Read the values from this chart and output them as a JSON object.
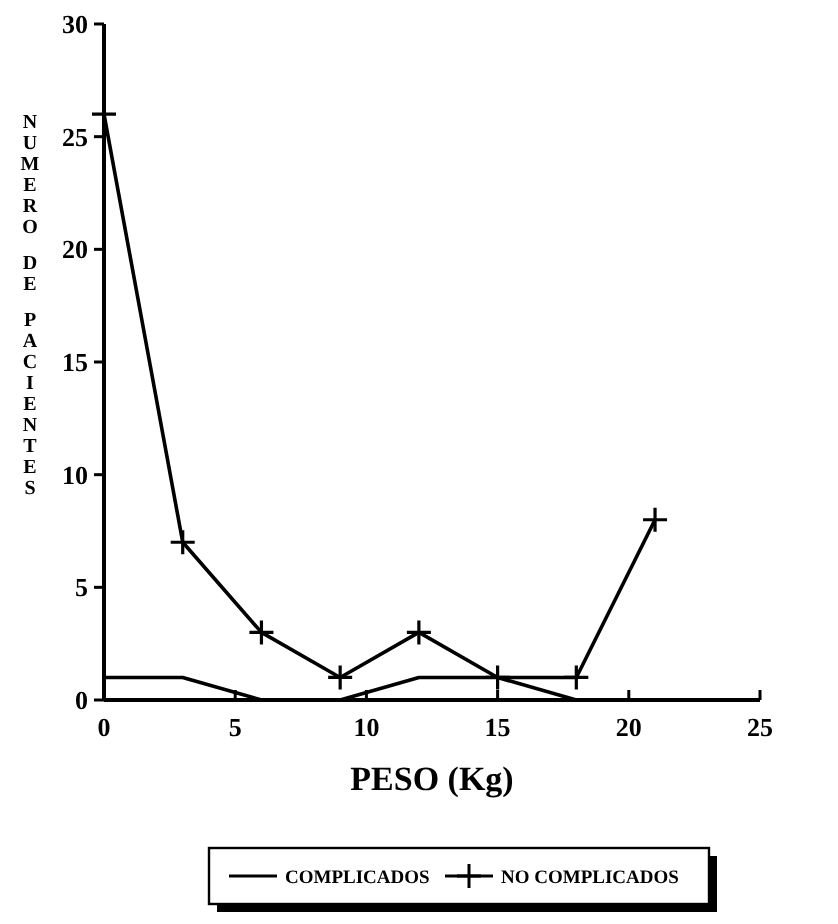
{
  "chart_data": {
    "type": "line",
    "xlabel": "PESO (Kg)",
    "ylabel": "NUMERO DE PACIENTES",
    "x": [
      0,
      3,
      6,
      9,
      12,
      15,
      18,
      21
    ],
    "xlim": [
      0,
      25
    ],
    "xticks": [
      0,
      5,
      10,
      15,
      20,
      25
    ],
    "ylim": [
      0,
      30
    ],
    "yticks": [
      0,
      5,
      10,
      15,
      20,
      25,
      30
    ],
    "grid": false,
    "legend": "bottom",
    "series": [
      {
        "name": "COMPLICADOS",
        "color": "#000000",
        "marker": "none",
        "x": [
          0,
          3,
          6,
          9,
          12,
          15,
          18
        ],
        "values": [
          1,
          1,
          0,
          0,
          1,
          1,
          0
        ]
      },
      {
        "name": "NO COMPLICADOS",
        "color": "#000000",
        "marker": "cross",
        "values": [
          26,
          7,
          3,
          1,
          3,
          1,
          1,
          8
        ]
      }
    ]
  }
}
